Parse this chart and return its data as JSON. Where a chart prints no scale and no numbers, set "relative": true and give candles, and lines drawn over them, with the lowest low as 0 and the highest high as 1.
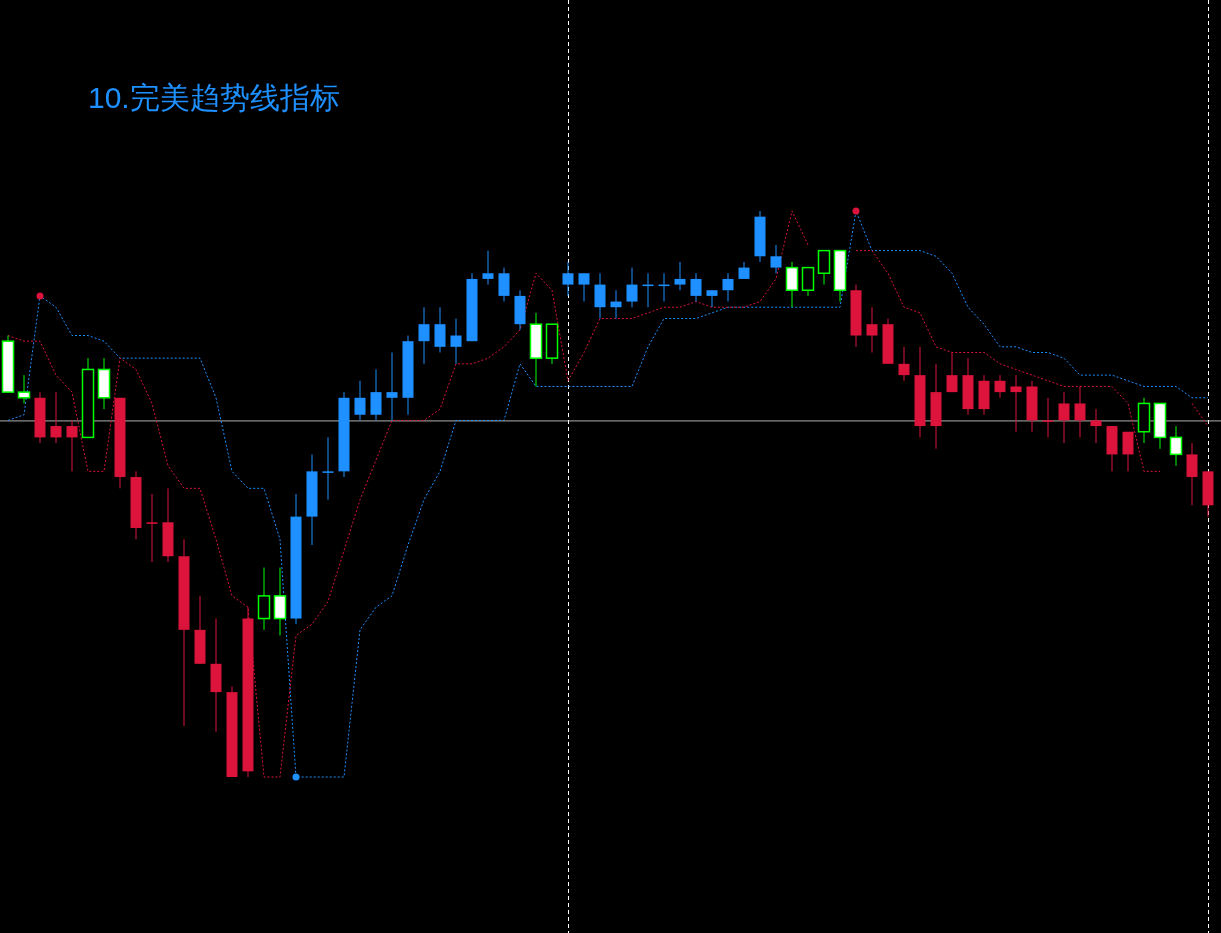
{
  "chart_data": {
    "type": "candlestick",
    "title": "10.完美趋势线指标",
    "relative": true,
    "categories": [
      null,
      null,
      null,
      null,
      null,
      null,
      null,
      null,
      null,
      null,
      null,
      null,
      null,
      null,
      null,
      null,
      null,
      null,
      null,
      null,
      null,
      null,
      null,
      null,
      null,
      null,
      null,
      null,
      null,
      null,
      null,
      null,
      null,
      null,
      null,
      null,
      null,
      null,
      null,
      null,
      null,
      null,
      null,
      null,
      null,
      null,
      null,
      null,
      null,
      null,
      null,
      null,
      null,
      null,
      null,
      null,
      null,
      null,
      null,
      null,
      null,
      null,
      null,
      null,
      null,
      null,
      null,
      null,
      null,
      null,
      null,
      null,
      null,
      null,
      null,
      null
    ],
    "ohlc": [
      [
        0.68,
        0.78,
        0.68,
        0.77
      ],
      [
        0.67,
        0.71,
        0.66,
        0.68
      ],
      [
        0.67,
        0.68,
        0.59,
        0.6
      ],
      [
        0.62,
        0.68,
        0.59,
        0.6
      ],
      [
        0.62,
        0.63,
        0.54,
        0.6
      ],
      [
        0.72,
        0.74,
        0.6,
        0.6
      ],
      [
        0.67,
        0.74,
        0.65,
        0.72
      ],
      [
        0.67,
        0.67,
        0.51,
        0.53
      ],
      [
        0.53,
        0.54,
        0.42,
        0.44
      ],
      [
        0.45,
        0.5,
        0.38,
        0.45
      ],
      [
        0.45,
        0.51,
        0.38,
        0.39
      ],
      [
        0.39,
        0.42,
        0.09,
        0.26
      ],
      [
        0.26,
        0.32,
        0.2,
        0.2
      ],
      [
        0.2,
        0.28,
        0.08,
        0.15
      ],
      [
        0.15,
        0.16,
        0,
        0
      ],
      [
        0.28,
        0.3,
        0,
        0.01
      ],
      [
        0.32,
        0.37,
        0.26,
        0.28
      ],
      [
        0.28,
        0.37,
        0.25,
        0.32
      ],
      [
        0.28,
        0.5,
        0.27,
        0.46
      ],
      [
        0.46,
        0.57,
        0.41,
        0.54
      ],
      [
        0.54,
        0.6,
        0.49,
        0.54
      ],
      [
        0.54,
        0.68,
        0.53,
        0.67
      ],
      [
        0.64,
        0.7,
        0.63,
        0.67
      ],
      [
        0.64,
        0.72,
        0.63,
        0.68
      ],
      [
        0.67,
        0.75,
        0.63,
        0.68
      ],
      [
        0.67,
        0.78,
        0.64,
        0.77
      ],
      [
        0.77,
        0.83,
        0.73,
        0.8
      ],
      [
        0.76,
        0.83,
        0.75,
        0.8
      ],
      [
        0.76,
        0.81,
        0.73,
        0.78
      ],
      [
        0.77,
        0.89,
        0.77,
        0.88
      ],
      [
        0.88,
        0.93,
        0.87,
        0.89
      ],
      [
        0.85,
        0.9,
        0.84,
        0.89
      ],
      [
        0.8,
        0.86,
        0.79,
        0.85
      ],
      [
        0.74,
        0.82,
        0.69,
        0.8
      ],
      [
        0.8,
        0.8,
        0.73,
        0.74
      ],
      [
        0.87,
        0.91,
        0.85,
        0.89
      ],
      [
        0.87,
        0.89,
        0.84,
        0.89
      ],
      [
        0.83,
        0.89,
        0.81,
        0.87
      ],
      [
        0.83,
        0.86,
        0.81,
        0.84
      ],
      [
        0.84,
        0.9,
        0.83,
        0.87
      ],
      [
        0.87,
        0.89,
        0.83,
        0.87
      ],
      [
        0.87,
        0.89,
        0.84,
        0.87
      ],
      [
        0.87,
        0.91,
        0.86,
        0.88
      ],
      [
        0.85,
        0.89,
        0.84,
        0.88
      ],
      [
        0.85,
        0.86,
        0.83,
        0.86
      ],
      [
        0.86,
        0.89,
        0.84,
        0.88
      ],
      [
        0.88,
        0.91,
        0.88,
        0.9
      ],
      [
        0.92,
        1,
        0.91,
        0.99
      ],
      [
        0.9,
        0.94,
        0.89,
        0.92
      ],
      [
        0.86,
        0.91,
        0.83,
        0.9
      ],
      [
        0.9,
        0.9,
        0.85,
        0.86
      ],
      [
        0.93,
        0.93,
        0.87,
        0.89
      ],
      [
        0.86,
        0.93,
        0.84,
        0.93
      ],
      [
        0.86,
        0.87,
        0.76,
        0.78
      ],
      [
        0.8,
        0.83,
        0.75,
        0.78
      ],
      [
        0.8,
        0.81,
        0.73,
        0.73
      ],
      [
        0.73,
        0.76,
        0.7,
        0.71
      ],
      [
        0.71,
        0.76,
        0.6,
        0.62
      ],
      [
        0.68,
        0.73,
        0.58,
        0.62
      ],
      [
        0.71,
        0.75,
        0.68,
        0.68
      ],
      [
        0.71,
        0.74,
        0.64,
        0.65
      ],
      [
        0.7,
        0.71,
        0.64,
        0.65
      ],
      [
        0.7,
        0.71,
        0.67,
        0.68
      ],
      [
        0.69,
        0.71,
        0.61,
        0.68
      ],
      [
        0.69,
        0.7,
        0.61,
        0.63
      ],
      [
        0.63,
        0.67,
        0.6,
        0.63
      ],
      [
        0.66,
        0.68,
        0.59,
        0.63
      ],
      [
        0.66,
        0.69,
        0.6,
        0.63
      ],
      [
        0.63,
        0.65,
        0.59,
        0.62
      ],
      [
        0.62,
        0.62,
        0.54,
        0.57
      ],
      [
        0.61,
        0.61,
        0.54,
        0.57
      ],
      [
        0.66,
        0.67,
        0.59,
        0.61
      ],
      [
        0.6,
        0.66,
        0.58,
        0.66
      ],
      [
        0.57,
        0.62,
        0.55,
        0.6
      ],
      [
        0.57,
        0.59,
        0.48,
        0.53
      ],
      [
        0.54,
        0.54,
        0.46,
        0.48
      ]
    ],
    "colors": [
      "#00ff00",
      "#00ff00",
      "#dc143c",
      "#dc143c",
      "#dc143c",
      "#00ff00",
      "#00ff00",
      "#dc143c",
      "#dc143c",
      "#dc143c",
      "#dc143c",
      "#dc143c",
      "#dc143c",
      "#dc143c",
      "#dc143c",
      "#dc143c",
      "#00ff00",
      "#00ff00",
      "#1e90ff",
      "#1e90ff",
      "#1e90ff",
      "#1e90ff",
      "#1e90ff",
      "#1e90ff",
      "#1e90ff",
      "#1e90ff",
      "#1e90ff",
      "#1e90ff",
      "#1e90ff",
      "#1e90ff",
      "#1e90ff",
      "#1e90ff",
      "#1e90ff",
      "#00ff00",
      "#00ff00",
      "#1e90ff",
      "#1e90ff",
      "#1e90ff",
      "#1e90ff",
      "#1e90ff",
      "#1e90ff",
      "#1e90ff",
      "#1e90ff",
      "#1e90ff",
      "#1e90ff",
      "#1e90ff",
      "#1e90ff",
      "#1e90ff",
      "#1e90ff",
      "#00ff00",
      "#00ff00",
      "#00ff00",
      "#00ff00",
      "#dc143c",
      "#dc143c",
      "#dc143c",
      "#dc143c",
      "#dc143c",
      "#dc143c",
      "#dc143c",
      "#dc143c",
      "#dc143c",
      "#dc143c",
      "#dc143c",
      "#dc143c",
      "#dc143c",
      "#dc143c",
      "#dc143c",
      "#dc143c",
      "#dc143c",
      "#dc143c",
      "#00ff00",
      "#00ff00",
      "#00ff00",
      "#dc143c",
      "#dc143c"
    ],
    "series": [
      {
        "type": "line",
        "color": "#1e90ff",
        "line_style": "dotted",
        "values": [
          0.63,
          0.64,
          0.85,
          0.83,
          0.78,
          0.78,
          0.77,
          0.74,
          0.74,
          0.74,
          0.74,
          0.74,
          0.74,
          0.67,
          0.54,
          0.51,
          0.51,
          0.42,
          0,
          0,
          0,
          0,
          0.26,
          0.3,
          0.32,
          0.41,
          0.49,
          0.54,
          0.63,
          0.63,
          0.63,
          0.63,
          0.73,
          0.69,
          0.69,
          0.69,
          0.69,
          0.69,
          0.69,
          0.69,
          0.76,
          0.81,
          0.81,
          0.81,
          0.82,
          0.83,
          0.83,
          0.83,
          0.83,
          0.83,
          0.83,
          0.83,
          0.83,
          1,
          0.93,
          0.93,
          0.93,
          0.93,
          0.92,
          0.89,
          0.83,
          0.8,
          0.76,
          0.76,
          0.75,
          0.75,
          0.74,
          0.71,
          0.71,
          0.71,
          0.7,
          0.69,
          0.69,
          0.69,
          0.67,
          0.67
        ]
      },
      {
        "type": "line",
        "color": "#dc143c",
        "line_style": "dotted",
        "values": [
          0.78,
          0.77,
          0.77,
          0.71,
          0.68,
          0.54,
          0.54,
          0.74,
          0.72,
          0.66,
          0.55,
          0.51,
          0.51,
          0.42,
          0.32,
          0.3,
          0,
          0,
          0.25,
          0.27,
          0.31,
          0.4,
          0.49,
          0.56,
          0.63,
          0.63,
          0.63,
          0.65,
          0.73,
          0.73,
          0.74,
          0.76,
          0.79,
          0.89,
          0.86,
          0.7,
          0.75,
          0.81,
          0.81,
          0.81,
          0.82,
          0.83,
          0.83,
          0.84,
          0.83,
          0.83,
          0.83,
          0.84,
          0.88,
          1,
          0.94,
          null,
          null,
          0.93,
          0.93,
          0.89,
          0.83,
          0.82,
          0.76,
          0.75,
          0.75,
          0.75,
          0.73,
          0.72,
          0.71,
          0.7,
          0.69,
          0.69,
          0.69,
          0.69,
          0.66,
          0.54,
          0.54,
          null,
          0.66,
          0.62
        ]
      },
      {
        "type": "scatter",
        "color": "#dc143c",
        "marker": "circle",
        "values": [
          null,
          null,
          0.85,
          null,
          null,
          null,
          null,
          null,
          null,
          null,
          null,
          null,
          null,
          null,
          null,
          null,
          null,
          null,
          null,
          null,
          null,
          null,
          null,
          null,
          null,
          null,
          null,
          null,
          null,
          null,
          null,
          null,
          null,
          null,
          null,
          null,
          null,
          null,
          null,
          null,
          null,
          null,
          null,
          null,
          null,
          null,
          null,
          null,
          null,
          null,
          null,
          null,
          null,
          1,
          null,
          null,
          null,
          null,
          null,
          null,
          null,
          null,
          null,
          null,
          null,
          null,
          null,
          null,
          null,
          null,
          null,
          null,
          null,
          null,
          null,
          null
        ]
      },
      {
        "type": "scatter",
        "color": "#1e90ff",
        "marker": "circle",
        "values": [
          null,
          null,
          null,
          null,
          null,
          null,
          null,
          null,
          null,
          null,
          null,
          null,
          null,
          null,
          null,
          null,
          null,
          null,
          0,
          null,
          null,
          null,
          null,
          null,
          null,
          null,
          null,
          null,
          null,
          null,
          null,
          null,
          null,
          null,
          null,
          null,
          null,
          null,
          null,
          null,
          null,
          null,
          null,
          null,
          null,
          null,
          null,
          null,
          null,
          null,
          null,
          null,
          null,
          null,
          null,
          null,
          null,
          null,
          null,
          null,
          null,
          null,
          null,
          null,
          null,
          null,
          null,
          null,
          null,
          null,
          null,
          null,
          null,
          null,
          null,
          null
        ]
      }
    ],
    "ref_lines": [
      {
        "axis": "y",
        "value": 0.63,
        "color": "#b0b0b0",
        "line_style": "solid"
      }
    ]
  }
}
